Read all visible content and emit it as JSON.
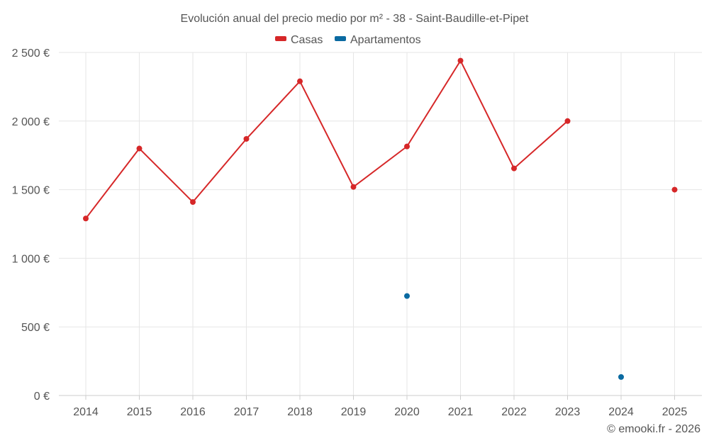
{
  "chart_data": {
    "type": "line",
    "title": "Evolución anual del precio medio por m² - 38 - Saint-Baudille-et-Pipet",
    "categories": [
      "2014",
      "2015",
      "2016",
      "2017",
      "2018",
      "2019",
      "2020",
      "2021",
      "2022",
      "2023",
      "2024",
      "2025"
    ],
    "ylim": [
      0,
      2500
    ],
    "yticks": [
      0,
      500,
      1000,
      1500,
      2000,
      2500
    ],
    "ytick_labels": [
      "0 €",
      "500 €",
      "1 000 €",
      "1 500 €",
      "2 000 €",
      "2 500 €"
    ],
    "grid": true,
    "legend_position": "top-center",
    "series": [
      {
        "name": "Casas",
        "color": "#d62728",
        "values": [
          1290,
          1800,
          1410,
          1870,
          2290,
          1520,
          1815,
          2440,
          1655,
          2000,
          null,
          1500
        ]
      },
      {
        "name": "Apartamentos",
        "color": "#0a6aa1",
        "values": [
          null,
          null,
          null,
          null,
          null,
          null,
          725,
          null,
          null,
          null,
          135,
          null
        ]
      }
    ],
    "credit": "© emooki.fr - 2026"
  }
}
